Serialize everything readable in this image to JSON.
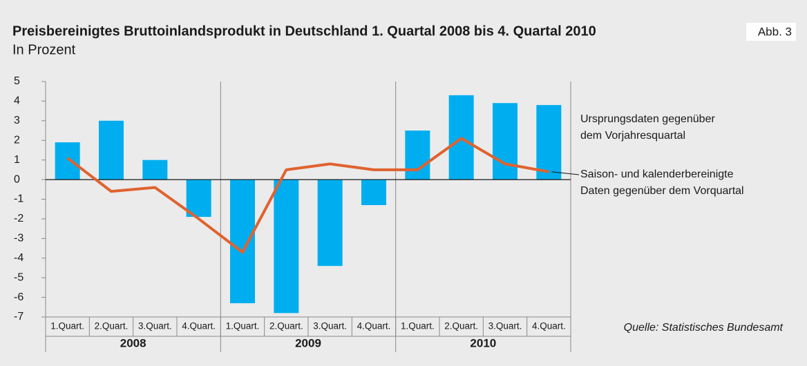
{
  "chart_data": {
    "type": "bar_line",
    "title": "Preisbereinigtes Bruttoinlandsprodukt in Deutschland 1. Quartal 2008 bis 4. Quartal 2010",
    "subtitle": "In Prozent",
    "figure_label": "Abb. 3",
    "source": "Quelle: Statistisches Bundesamt",
    "categories": [
      "1.Quart.",
      "2.Quart.",
      "3.Quart.",
      "4.Quart.",
      "1.Quart.",
      "2.Quart.",
      "3.Quart.",
      "4.Quart.",
      "1.Quart.",
      "2.Quart.",
      "3.Quart.",
      "4.Quart."
    ],
    "years": [
      "2008",
      "2009",
      "2010"
    ],
    "series": [
      {
        "name": "Ursprungsdaten gegenüber dem Vorjahresquartal",
        "type": "bar",
        "color": "#00aeef",
        "values": [
          1.9,
          3.0,
          1.0,
          -1.9,
          -6.3,
          -6.8,
          -4.4,
          -1.3,
          2.5,
          4.3,
          3.9,
          3.8
        ]
      },
      {
        "name": "Saison- und kalenderbereinigte Daten gegenüber dem Vorquartal",
        "type": "line",
        "color": "#e0622f",
        "values": [
          1.1,
          -0.6,
          -0.4,
          -2.0,
          -3.7,
          0.5,
          0.8,
          0.5,
          0.5,
          2.1,
          0.8,
          0.4
        ]
      }
    ],
    "ylim": [
      -7,
      5
    ],
    "yticks": [
      5,
      4,
      3,
      2,
      1,
      0,
      -1,
      -2,
      -3,
      -4,
      -5,
      -6,
      -7
    ]
  }
}
